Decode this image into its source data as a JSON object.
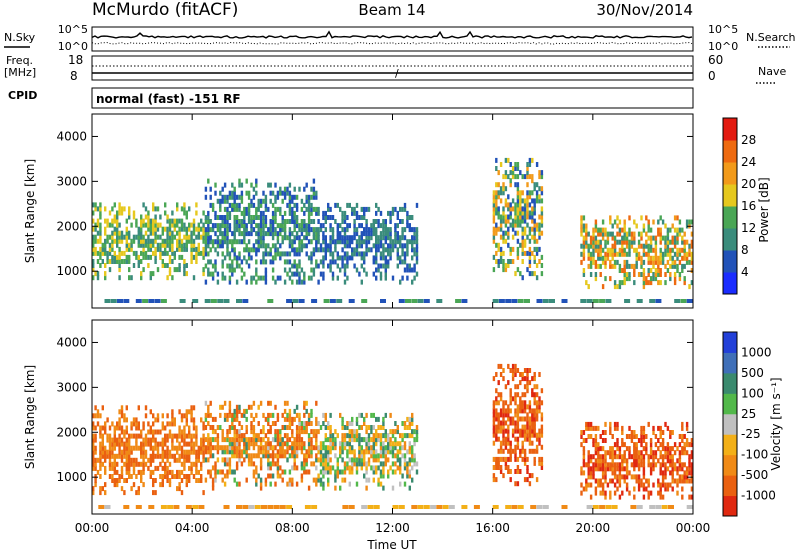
{
  "header": {
    "station": "McMurdo (fitACF)",
    "beam": "Beam 14",
    "date": "30/Nov/2014",
    "mode": "normal (fast) -151 RF"
  },
  "aux_panels": {
    "nsky_label": "N.Sky",
    "nsearch_label": "N.Search",
    "freq_label_1": "Freq.",
    "freq_label_2": "[MHz]",
    "cpid_label": "CPID",
    "nave_label": "Nave",
    "noise_ticks": [
      "10^5",
      "10^0"
    ],
    "freq_ticks": [
      "18",
      "8"
    ],
    "nave_ticks": [
      "60",
      "0"
    ]
  },
  "colors": {
    "power_scale": [
      "#1a2cff",
      "#2152b8",
      "#3a8c7c",
      "#4aa655",
      "#e6c81e",
      "#f29a1a",
      "#ee6a10",
      "#e21a10"
    ],
    "velocity_scale": [
      "#2240d8",
      "#3f6fb8",
      "#3a8a6e",
      "#52b84a",
      "#c0c0c0",
      "#f3b018",
      "#f08a16",
      "#ea6010",
      "#e02810"
    ]
  },
  "chart_data": [
    {
      "type": "heatmap",
      "panel": "power",
      "xlabel": "Time UT",
      "ylabel": "Slant Range [km]",
      "x_ticks": [
        "00:00",
        "04:00",
        "08:00",
        "12:00",
        "16:00",
        "20:00",
        "00:00"
      ],
      "x_range_hours": [
        0,
        24
      ],
      "y_ticks": [
        1000,
        2000,
        3000,
        4000
      ],
      "ylim": [
        180,
        4500
      ],
      "colorbar": {
        "label": "Power [dB]",
        "ticks": [
          28,
          24,
          20,
          16,
          12,
          8,
          4
        ],
        "range": [
          0,
          32
        ]
      },
      "approx_echo_regions": [
        {
          "start": "00:00",
          "end": "04:30",
          "range_km": [
            800,
            2500
          ],
          "typical_dB": [
            8,
            20
          ]
        },
        {
          "start": "04:30",
          "end": "09:00",
          "range_km": [
            700,
            3000
          ],
          "typical_dB": [
            4,
            16
          ]
        },
        {
          "start": "09:00",
          "end": "13:00",
          "range_km": [
            700,
            2500
          ],
          "typical_dB": [
            4,
            12
          ]
        },
        {
          "start": "16:00",
          "end": "18:00",
          "range_km": [
            800,
            3500
          ],
          "typical_dB": [
            4,
            24
          ]
        },
        {
          "start": "19:30",
          "end": "24:00",
          "range_km": [
            600,
            2200
          ],
          "typical_dB": [
            8,
            28
          ]
        }
      ]
    },
    {
      "type": "heatmap",
      "panel": "velocity",
      "xlabel": "Time UT",
      "ylabel": "Slant Range [km]",
      "x_ticks": [
        "00:00",
        "04:00",
        "08:00",
        "12:00",
        "16:00",
        "20:00",
        "00:00"
      ],
      "x_range_hours": [
        0,
        24
      ],
      "y_ticks": [
        1000,
        2000,
        3000,
        4000
      ],
      "ylim": [
        180,
        4500
      ],
      "colorbar": {
        "label": "Velocity [m s⁻¹]",
        "ticks": [
          1000,
          500,
          100,
          25,
          -25,
          -100,
          -500,
          -1000
        ],
        "range": [
          -1000,
          1000
        ]
      },
      "approx_echo_regions": [
        {
          "start": "00:00",
          "end": "04:30",
          "range_km": [
            600,
            2500
          ],
          "typical_velocity": [
            -500,
            -100
          ]
        },
        {
          "start": "04:30",
          "end": "09:00",
          "range_km": [
            700,
            2600
          ],
          "typical_velocity": [
            -500,
            100
          ]
        },
        {
          "start": "09:00",
          "end": "13:00",
          "range_km": [
            700,
            2400
          ],
          "typical_velocity": [
            -100,
            100
          ]
        },
        {
          "start": "16:00",
          "end": "18:00",
          "range_km": [
            800,
            3500
          ],
          "typical_velocity": [
            -1000,
            -100
          ]
        },
        {
          "start": "19:30",
          "end": "24:00",
          "range_km": [
            500,
            2200
          ],
          "typical_velocity": [
            -1000,
            -100
          ]
        }
      ]
    }
  ]
}
